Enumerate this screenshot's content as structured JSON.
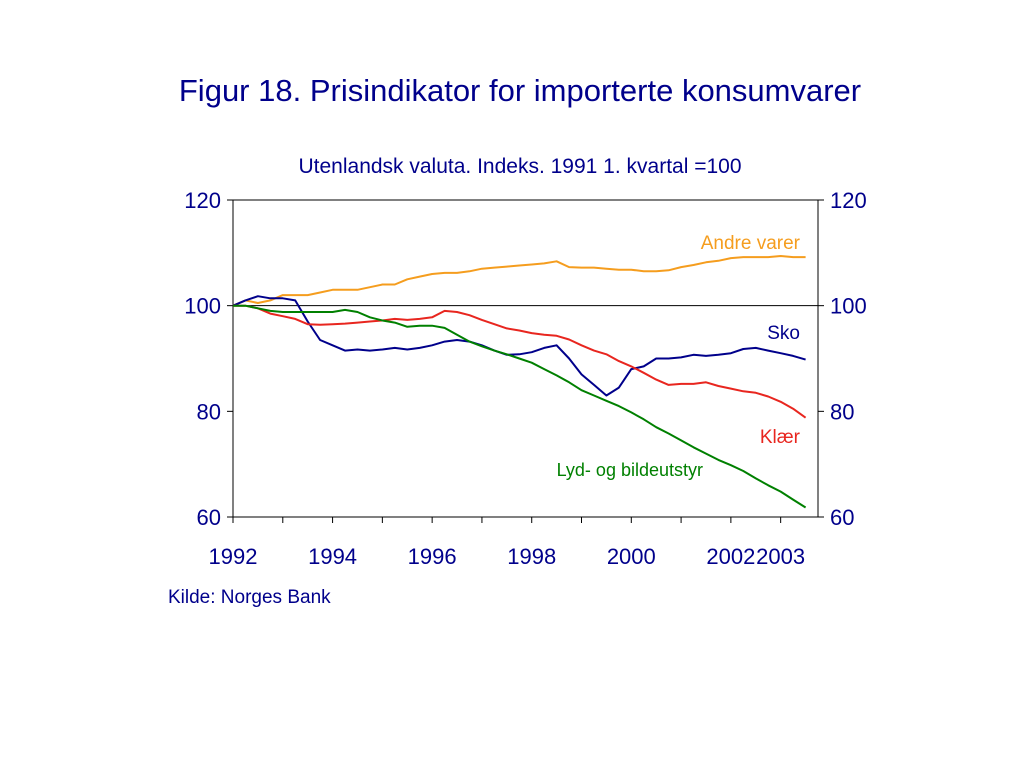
{
  "title": "Figur 18. Prisindikator for importerte konsumvarer",
  "subtitle": "Utenlandsk valuta. Indeks. 1991 1. kvartal =100",
  "source": "Kilde: Norges Bank",
  "chart_data": {
    "type": "line",
    "title": "Figur 18. Prisindikator for importerte konsumvarer",
    "subtitle": "Utenlandsk valuta. Indeks. 1991 1. kvartal =100",
    "xlim": [
      1992,
      2003.75
    ],
    "ylim": [
      60,
      120
    ],
    "x_ticks": [
      1992,
      1994,
      1996,
      1998,
      2000,
      2002,
      2003
    ],
    "x_tick_labels": [
      "1992",
      "1994",
      "1996",
      "1998",
      "2000",
      "2002",
      "2003"
    ],
    "y_ticks": [
      60,
      80,
      100,
      120
    ],
    "y_tick_labels": [
      "60",
      "80",
      "100",
      "120"
    ],
    "y_axis_both_sides": true,
    "reference_line": 100,
    "grid": false,
    "legend": "inline labels",
    "series": [
      {
        "name": "Andre varer",
        "color": "#f59d1e",
        "points": [
          [
            1992,
            100
          ],
          [
            1992.25,
            101
          ],
          [
            1992.5,
            100.5
          ],
          [
            1992.75,
            101
          ],
          [
            1993,
            102
          ],
          [
            1993.25,
            102
          ],
          [
            1993.5,
            102
          ],
          [
            1993.75,
            102.5
          ],
          [
            1994,
            103
          ],
          [
            1994.25,
            103
          ],
          [
            1994.5,
            103
          ],
          [
            1994.75,
            103.5
          ],
          [
            1995,
            104
          ],
          [
            1995.25,
            104
          ],
          [
            1995.5,
            105
          ],
          [
            1995.75,
            105.5
          ],
          [
            1996,
            106
          ],
          [
            1996.25,
            106.2
          ],
          [
            1996.5,
            106.2
          ],
          [
            1996.75,
            106.5
          ],
          [
            1997,
            107
          ],
          [
            1997.25,
            107.2
          ],
          [
            1997.5,
            107.4
          ],
          [
            1997.75,
            107.6
          ],
          [
            1998,
            107.8
          ],
          [
            1998.25,
            108
          ],
          [
            1998.5,
            108.4
          ],
          [
            1998.75,
            107.3
          ],
          [
            1999,
            107.2
          ],
          [
            1999.25,
            107.2
          ],
          [
            1999.5,
            107
          ],
          [
            1999.75,
            106.8
          ],
          [
            2000,
            106.8
          ],
          [
            2000.25,
            106.5
          ],
          [
            2000.5,
            106.5
          ],
          [
            2000.75,
            106.7
          ],
          [
            2001,
            107.3
          ],
          [
            2001.25,
            107.7
          ],
          [
            2001.5,
            108.2
          ],
          [
            2001.75,
            108.5
          ],
          [
            2002,
            109
          ],
          [
            2002.25,
            109.2
          ],
          [
            2002.5,
            109.2
          ],
          [
            2002.75,
            109.2
          ],
          [
            2003,
            109.4
          ],
          [
            2003.25,
            109.2
          ],
          [
            2003.5,
            109.2
          ]
        ]
      },
      {
        "name": "Sko",
        "color": "#00008b",
        "points": [
          [
            1992,
            100
          ],
          [
            1992.25,
            101
          ],
          [
            1992.5,
            101.8
          ],
          [
            1992.75,
            101.4
          ],
          [
            1993,
            101.4
          ],
          [
            1993.25,
            101
          ],
          [
            1993.5,
            97
          ],
          [
            1993.75,
            93.5
          ],
          [
            1994,
            92.5
          ],
          [
            1994.25,
            91.5
          ],
          [
            1994.5,
            91.7
          ],
          [
            1994.75,
            91.5
          ],
          [
            1995,
            91.7
          ],
          [
            1995.25,
            92
          ],
          [
            1995.5,
            91.7
          ],
          [
            1995.75,
            92
          ],
          [
            1996,
            92.5
          ],
          [
            1996.25,
            93.2
          ],
          [
            1996.5,
            93.5
          ],
          [
            1996.75,
            93.2
          ],
          [
            1997,
            92.5
          ],
          [
            1997.25,
            91.5
          ],
          [
            1997.5,
            90.7
          ],
          [
            1997.75,
            90.8
          ],
          [
            1998,
            91.2
          ],
          [
            1998.25,
            92
          ],
          [
            1998.5,
            92.5
          ],
          [
            1998.75,
            90
          ],
          [
            1999,
            87
          ],
          [
            1999.25,
            85
          ],
          [
            1999.5,
            83
          ],
          [
            1999.75,
            84.5
          ],
          [
            2000,
            88
          ],
          [
            2000.25,
            88.5
          ],
          [
            2000.5,
            90
          ],
          [
            2000.75,
            90
          ],
          [
            2001,
            90.2
          ],
          [
            2001.25,
            90.7
          ],
          [
            2001.5,
            90.5
          ],
          [
            2001.75,
            90.7
          ],
          [
            2002,
            91
          ],
          [
            2002.25,
            91.8
          ],
          [
            2002.5,
            92
          ],
          [
            2002.75,
            91.5
          ],
          [
            2003,
            91
          ],
          [
            2003.25,
            90.5
          ],
          [
            2003.5,
            89.8
          ]
        ]
      },
      {
        "name": "Klær",
        "color": "#e8261f",
        "points": [
          [
            1992,
            100
          ],
          [
            1992.25,
            100
          ],
          [
            1992.5,
            99.5
          ],
          [
            1992.75,
            98.5
          ],
          [
            1993,
            98
          ],
          [
            1993.25,
            97.5
          ],
          [
            1993.5,
            96.5
          ],
          [
            1993.75,
            96.4
          ],
          [
            1994,
            96.5
          ],
          [
            1994.25,
            96.6
          ],
          [
            1994.5,
            96.8
          ],
          [
            1994.75,
            97
          ],
          [
            1995,
            97.2
          ],
          [
            1995.25,
            97.5
          ],
          [
            1995.5,
            97.3
          ],
          [
            1995.75,
            97.5
          ],
          [
            1996,
            97.8
          ],
          [
            1996.25,
            99
          ],
          [
            1996.5,
            98.8
          ],
          [
            1996.75,
            98.2
          ],
          [
            1997,
            97.3
          ],
          [
            1997.25,
            96.5
          ],
          [
            1997.5,
            95.7
          ],
          [
            1997.75,
            95.3
          ],
          [
            1998,
            94.8
          ],
          [
            1998.25,
            94.5
          ],
          [
            1998.5,
            94.3
          ],
          [
            1998.75,
            93.6
          ],
          [
            1999,
            92.5
          ],
          [
            1999.25,
            91.5
          ],
          [
            1999.5,
            90.8
          ],
          [
            1999.75,
            89.5
          ],
          [
            2000,
            88.5
          ],
          [
            2000.25,
            87.3
          ],
          [
            2000.5,
            86
          ],
          [
            2000.75,
            85
          ],
          [
            2001,
            85.2
          ],
          [
            2001.25,
            85.2
          ],
          [
            2001.5,
            85.5
          ],
          [
            2001.75,
            84.8
          ],
          [
            2002,
            84.3
          ],
          [
            2002.25,
            83.8
          ],
          [
            2002.5,
            83.5
          ],
          [
            2002.75,
            82.8
          ],
          [
            2003,
            81.8
          ],
          [
            2003.25,
            80.5
          ],
          [
            2003.5,
            78.8
          ]
        ]
      },
      {
        "name": "Lyd- og bildeutstyr",
        "color": "#008000",
        "points": [
          [
            1992,
            100
          ],
          [
            1992.25,
            100
          ],
          [
            1992.5,
            99.5
          ],
          [
            1992.75,
            99
          ],
          [
            1993,
            98.8
          ],
          [
            1993.25,
            98.8
          ],
          [
            1993.5,
            98.8
          ],
          [
            1993.75,
            98.8
          ],
          [
            1994,
            98.8
          ],
          [
            1994.25,
            99.2
          ],
          [
            1994.5,
            98.8
          ],
          [
            1994.75,
            97.8
          ],
          [
            1995,
            97.2
          ],
          [
            1995.25,
            96.8
          ],
          [
            1995.5,
            96
          ],
          [
            1995.75,
            96.2
          ],
          [
            1996,
            96.2
          ],
          [
            1996.25,
            95.8
          ],
          [
            1996.5,
            94.5
          ],
          [
            1996.75,
            93.2
          ],
          [
            1997,
            92.3
          ],
          [
            1997.25,
            91.5
          ],
          [
            1997.5,
            90.8
          ],
          [
            1997.75,
            90
          ],
          [
            1998,
            89.2
          ],
          [
            1998.25,
            88
          ],
          [
            1998.5,
            86.8
          ],
          [
            1998.75,
            85.5
          ],
          [
            1999,
            84
          ],
          [
            1999.25,
            83
          ],
          [
            1999.5,
            82
          ],
          [
            1999.75,
            81
          ],
          [
            2000,
            79.8
          ],
          [
            2000.25,
            78.5
          ],
          [
            2000.5,
            77
          ],
          [
            2000.75,
            75.8
          ],
          [
            2001,
            74.5
          ],
          [
            2001.25,
            73.2
          ],
          [
            2001.5,
            72
          ],
          [
            2001.75,
            70.8
          ],
          [
            2002,
            69.8
          ],
          [
            2002.25,
            68.7
          ],
          [
            2002.5,
            67.3
          ],
          [
            2002.75,
            66
          ],
          [
            2003,
            64.8
          ],
          [
            2003.25,
            63.3
          ],
          [
            2003.5,
            61.8
          ]
        ]
      }
    ]
  }
}
